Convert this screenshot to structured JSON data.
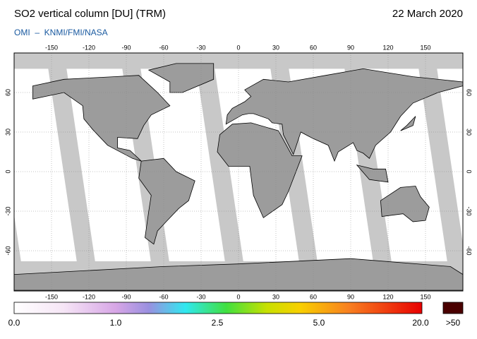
{
  "header": {
    "title": "SO2 vertical column [DU] (TRM)",
    "date": "22 March 2020",
    "credit": "OMI  –  KNMI/FMI/NASA"
  },
  "map": {
    "lon_ticks": [
      -150,
      -120,
      -90,
      -60,
      -30,
      0,
      30,
      60,
      90,
      120,
      150
    ],
    "lat_ticks": [
      60,
      30,
      0,
      -30,
      -60
    ]
  },
  "colorbar": {
    "labels": [
      "0.0",
      "1.0",
      "2.5",
      "5.0",
      "20.0"
    ],
    "overflow": ">50"
  }
}
